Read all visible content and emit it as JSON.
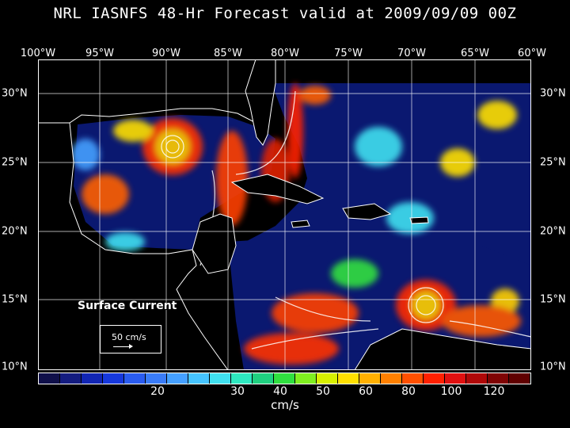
{
  "title": "NRL IASNFS  48-Hr Forecast valid at 2009/09/09 00Z",
  "lon_labels": [
    "100°W",
    "95°W",
    "90°W",
    "85°W",
    "80°W",
    "75°W",
    "70°W",
    "65°W",
    "60°W"
  ],
  "lat_labels": [
    "30°N",
    "25°N",
    "20°N",
    "15°N",
    "10°N"
  ],
  "overlay_label": "Surface Current",
  "reference_vector_label": "50 cm/s",
  "colorbar": {
    "units": "cm/s",
    "tick_labels": [
      "20",
      "30",
      "40",
      "50",
      "60",
      "80",
      "100",
      "120"
    ],
    "colors": [
      "#10104a",
      "#141c80",
      "#1226b4",
      "#1638dc",
      "#2a5cf0",
      "#3a7cf8",
      "#45a0ff",
      "#46c4ff",
      "#40e0f0",
      "#2ee8c0",
      "#20d080",
      "#30e040",
      "#80f020",
      "#d8f000",
      "#ffe000",
      "#ffb000",
      "#ff8000",
      "#ff5000",
      "#ff2000",
      "#e01010",
      "#b00808",
      "#800404",
      "#600000"
    ]
  }
}
